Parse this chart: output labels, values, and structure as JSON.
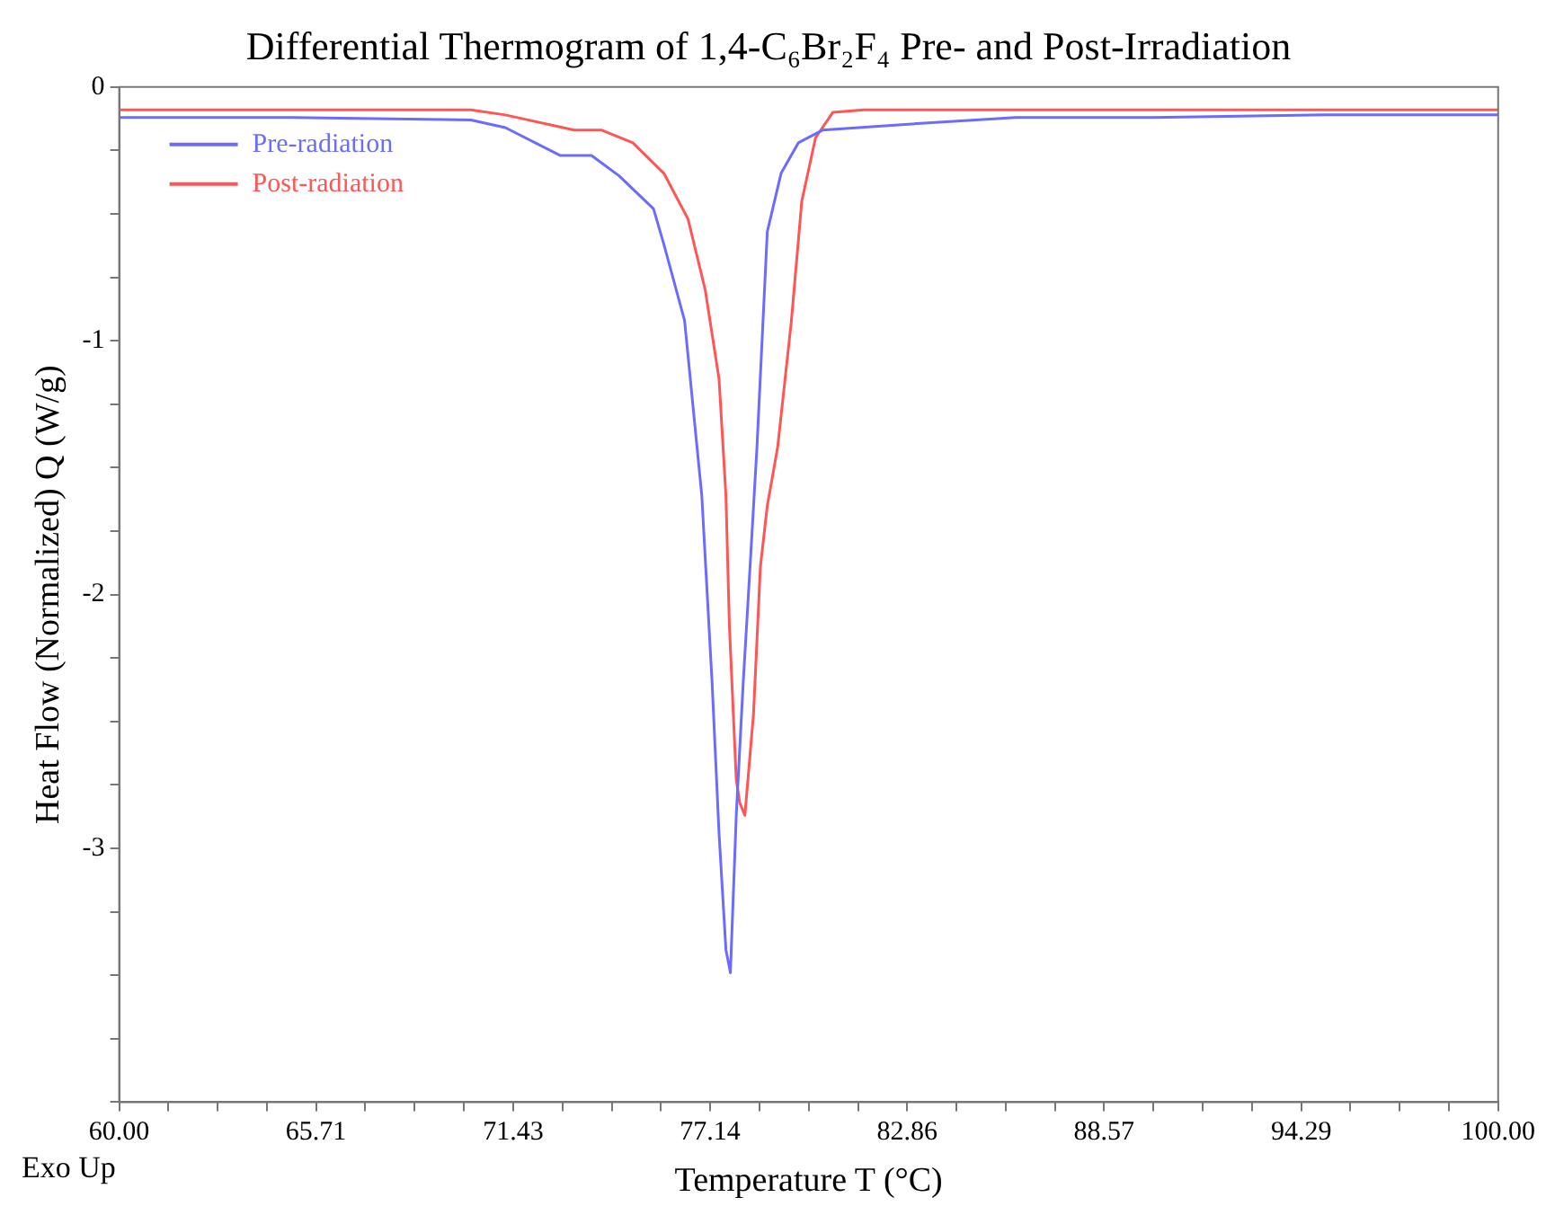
{
  "chart_data": {
    "type": "line",
    "title": "Differential Thermogram of 1,4-C₆Br₂F₄ Pre- and Post-Irradiation",
    "xlabel": "Temperature T (°C)",
    "ylabel": "Heat Flow (Normalized) Q (W/g)",
    "annotations": [
      "Exo Up"
    ],
    "series": [
      {
        "name": "Pre-radiation",
        "color": "#6b6bff",
        "x": [
          60,
          65,
          70.2,
          71.2,
          72.8,
          73.7,
          74.5,
          75.5,
          75.8,
          76.4,
          76.9,
          77.2,
          77.4,
          77.6,
          77.73,
          77.9,
          78.1,
          78.3,
          78.5,
          78.8,
          79.2,
          79.7,
          80.4,
          82.5,
          86,
          90,
          95,
          100
        ],
        "values": [
          -0.12,
          -0.12,
          -0.13,
          -0.16,
          -0.27,
          -0.27,
          -0.35,
          -0.48,
          -0.62,
          -0.92,
          -1.61,
          -2.35,
          -2.94,
          -3.4,
          -3.49,
          -2.87,
          -2.35,
          -1.89,
          -1.42,
          -0.57,
          -0.34,
          -0.22,
          -0.17,
          -0.15,
          -0.12,
          -0.12,
          -0.11,
          -0.11
        ]
      },
      {
        "name": "Post-radiation",
        "color": "#ff5555",
        "x": [
          60,
          65,
          70.2,
          71.2,
          73.2,
          74,
          74.9,
          75.8,
          76.5,
          77,
          77.4,
          77.6,
          77.7,
          77.9,
          78,
          78.15,
          78.4,
          78.6,
          78.8,
          79.1,
          79.5,
          79.8,
          80.2,
          80.7,
          81.6,
          86,
          90,
          95,
          100
        ],
        "values": [
          -0.09,
          -0.09,
          -0.09,
          -0.11,
          -0.17,
          -0.17,
          -0.22,
          -0.34,
          -0.52,
          -0.8,
          -1.15,
          -1.61,
          -2.12,
          -2.73,
          -2.82,
          -2.87,
          -2.47,
          -1.89,
          -1.65,
          -1.42,
          -0.92,
          -0.45,
          -0.2,
          -0.1,
          -0.09,
          -0.09,
          -0.09,
          -0.09,
          -0.09
        ]
      }
    ],
    "xlim": [
      60,
      100
    ],
    "xticks": [
      {
        "value": 60,
        "label": "60.00"
      },
      {
        "value": 61.43,
        "label": null
      },
      {
        "value": 62.86,
        "label": null
      },
      {
        "value": 64.29,
        "label": null
      },
      {
        "value": 65.71,
        "label": "65.71"
      },
      {
        "value": 67.14,
        "label": null
      },
      {
        "value": 68.57,
        "label": null
      },
      {
        "value": 70,
        "label": null
      },
      {
        "value": 71.43,
        "label": "71.43"
      },
      {
        "value": 72.86,
        "label": null
      },
      {
        "value": 74.29,
        "label": null
      },
      {
        "value": 75.71,
        "label": null
      },
      {
        "value": 77.14,
        "label": "77.14"
      },
      {
        "value": 78.57,
        "label": null
      },
      {
        "value": 80,
        "label": null
      },
      {
        "value": 81.43,
        "label": null
      },
      {
        "value": 82.86,
        "label": "82.86"
      },
      {
        "value": 84.29,
        "label": null
      },
      {
        "value": 85.71,
        "label": null
      },
      {
        "value": 87.14,
        "label": null
      },
      {
        "value": 88.57,
        "label": "88.57"
      },
      {
        "value": 90,
        "label": null
      },
      {
        "value": 91.43,
        "label": null
      },
      {
        "value": 92.86,
        "label": null
      },
      {
        "value": 94.29,
        "label": "94.29"
      },
      {
        "value": 95.71,
        "label": null
      },
      {
        "value": 97.14,
        "label": null
      },
      {
        "value": 98.57,
        "label": null
      },
      {
        "value": 100,
        "label": "100.00"
      }
    ],
    "ylim": [
      -4,
      0
    ],
    "yticks": [
      0,
      {
        "value": -0.25,
        "label": null
      },
      {
        "value": -0.5,
        "label": null
      },
      {
        "value": -0.75,
        "label": null
      },
      -1,
      {
        "value": -1.25,
        "label": null
      },
      {
        "value": -1.5,
        "label": null
      },
      {
        "value": -1.75,
        "label": null
      },
      -2,
      {
        "value": -2.25,
        "label": null
      },
      {
        "value": -2.5,
        "label": null
      },
      {
        "value": -2.75,
        "label": null
      },
      -3,
      {
        "value": -3.25,
        "label": null
      },
      {
        "value": -3.5,
        "label": null
      },
      {
        "value": -3.75,
        "label": null
      },
      {
        "value": -4,
        "label": null
      }
    ],
    "grid": false,
    "legend": "top left",
    "line_style": "solid",
    "marker": "none"
  }
}
